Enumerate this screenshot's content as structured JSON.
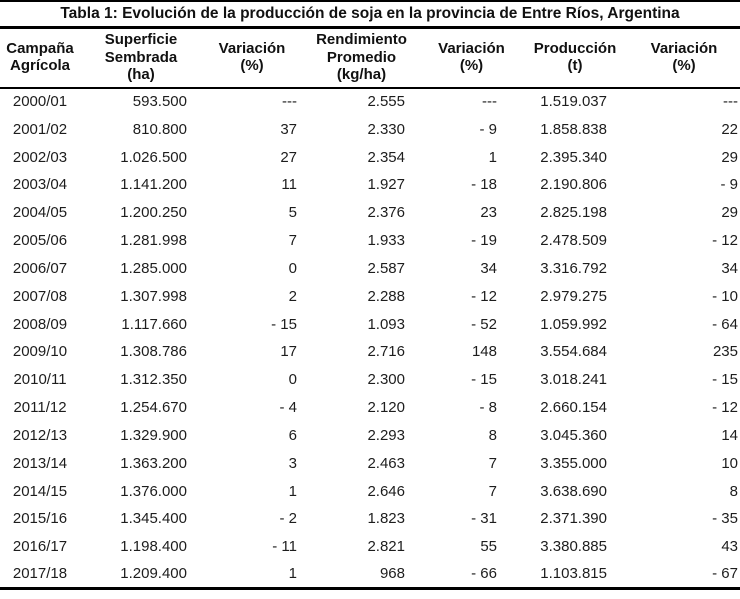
{
  "title": "Tabla 1: Evolución de la producción de soja en la provincia de Entre Ríos, Argentina",
  "chart_data": {
    "type": "table",
    "title": "Tabla 1: Evolución de la producción de soja en la provincia de Entre Ríos, Argentina",
    "columns": [
      "Campaña\nAgrícola",
      "Superficie\nSembrada\n(ha)",
      "Variación\n(%)",
      "Rendimiento\nPromedio\n(kg/ha)",
      "Variación\n(%)",
      "Producción\n(t)",
      "Variación\n(%)"
    ],
    "rows": [
      [
        "2000/01",
        "593.500",
        "---",
        "2.555",
        "---",
        "1.519.037",
        "---"
      ],
      [
        "2001/02",
        "810.800",
        "37",
        "2.330",
        "- 9",
        "1.858.838",
        "22"
      ],
      [
        "2002/03",
        "1.026.500",
        "27",
        "2.354",
        "1",
        "2.395.340",
        "29"
      ],
      [
        "2003/04",
        "1.141.200",
        "11",
        "1.927",
        "- 18",
        "2.190.806",
        "- 9"
      ],
      [
        "2004/05",
        "1.200.250",
        "5",
        "2.376",
        "23",
        "2.825.198",
        "29"
      ],
      [
        "2005/06",
        "1.281.998",
        "7",
        "1.933",
        "- 19",
        "2.478.509",
        "- 12"
      ],
      [
        "2006/07",
        "1.285.000",
        "0",
        "2.587",
        "34",
        "3.316.792",
        "34"
      ],
      [
        "2007/08",
        "1.307.998",
        "2",
        "2.288",
        "- 12",
        "2.979.275",
        "- 10"
      ],
      [
        "2008/09",
        "1.117.660",
        "- 15",
        "1.093",
        "- 52",
        "1.059.992",
        "- 64"
      ],
      [
        "2009/10",
        "1.308.786",
        "17",
        "2.716",
        "148",
        "3.554.684",
        "235"
      ],
      [
        "2010/11",
        "1.312.350",
        "0",
        "2.300",
        "- 15",
        "3.018.241",
        "- 15"
      ],
      [
        "2011/12",
        "1.254.670",
        "- 4",
        "2.120",
        "- 8",
        "2.660.154",
        "- 12"
      ],
      [
        "2012/13",
        "1.329.900",
        "6",
        "2.293",
        "8",
        "3.045.360",
        "14"
      ],
      [
        "2013/14",
        "1.363.200",
        "3",
        "2.463",
        "7",
        "3.355.000",
        "10"
      ],
      [
        "2014/15",
        "1.376.000",
        "1",
        "2.646",
        "7",
        "3.638.690",
        "8"
      ],
      [
        "2015/16",
        "1.345.400",
        "- 2",
        "1.823",
        "- 31",
        "2.371.390",
        "- 35"
      ],
      [
        "2016/17",
        "1.198.400",
        "- 11",
        "2.821",
        "55",
        "3.380.885",
        "43"
      ],
      [
        "2017/18",
        "1.209.400",
        "1",
        "968",
        "- 66",
        "1.103.815",
        "- 67"
      ]
    ]
  }
}
